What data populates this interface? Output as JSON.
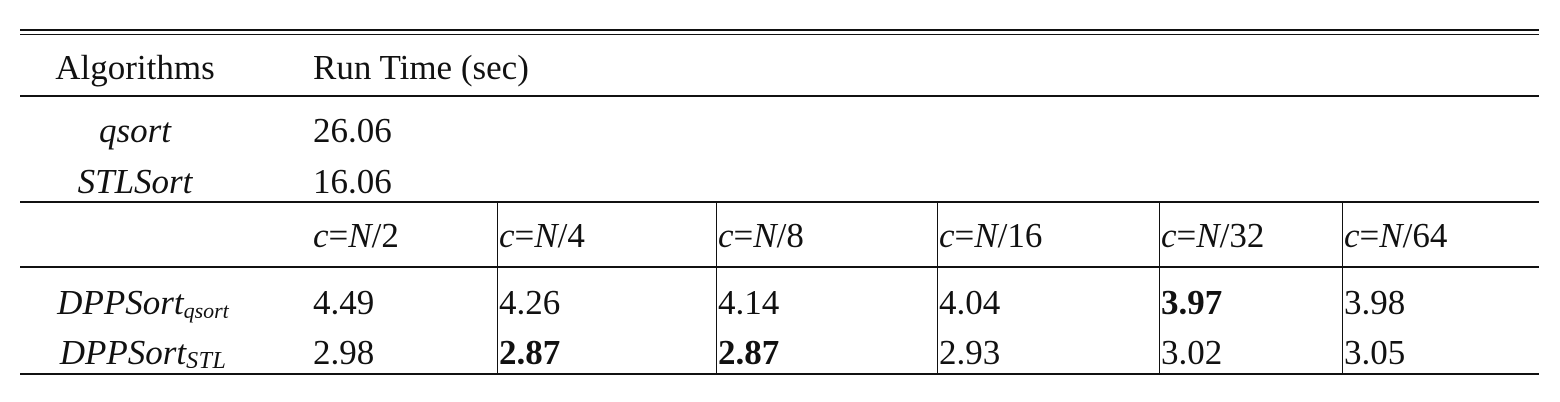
{
  "table": {
    "header": {
      "col1": "Algorithms",
      "col2": "Run Time (sec)"
    },
    "baselines": [
      {
        "name": "qsort",
        "value": "26.06"
      },
      {
        "name": "STLSort",
        "value": "16.06"
      }
    ],
    "c_headers": [
      {
        "prefix": "c",
        "rest": "=",
        "n": "N",
        "div": "/2"
      },
      {
        "prefix": "c",
        "rest": "=",
        "n": "N",
        "div": "/4"
      },
      {
        "prefix": "c",
        "rest": "=",
        "n": "N",
        "div": "/8"
      },
      {
        "prefix": "c",
        "rest": "=",
        "n": "N",
        "div": "/16"
      },
      {
        "prefix": "c",
        "rest": "=",
        "n": "N",
        "div": "/32"
      },
      {
        "prefix": "c",
        "rest": "=",
        "n": "N",
        "div": "/64"
      }
    ],
    "dpp_rows": [
      {
        "name": "DPPSort",
        "subscript": "qsort",
        "values": [
          "4.49",
          "4.26",
          "4.14",
          "4.04",
          "3.97",
          "3.98"
        ],
        "bold": [
          false,
          false,
          false,
          false,
          true,
          false
        ]
      },
      {
        "name": "DPPSort",
        "subscript": "STL",
        "values": [
          "2.98",
          "2.87",
          "2.87",
          "2.93",
          "3.02",
          "3.05"
        ],
        "bold": [
          false,
          true,
          true,
          false,
          false,
          false
        ]
      }
    ]
  }
}
